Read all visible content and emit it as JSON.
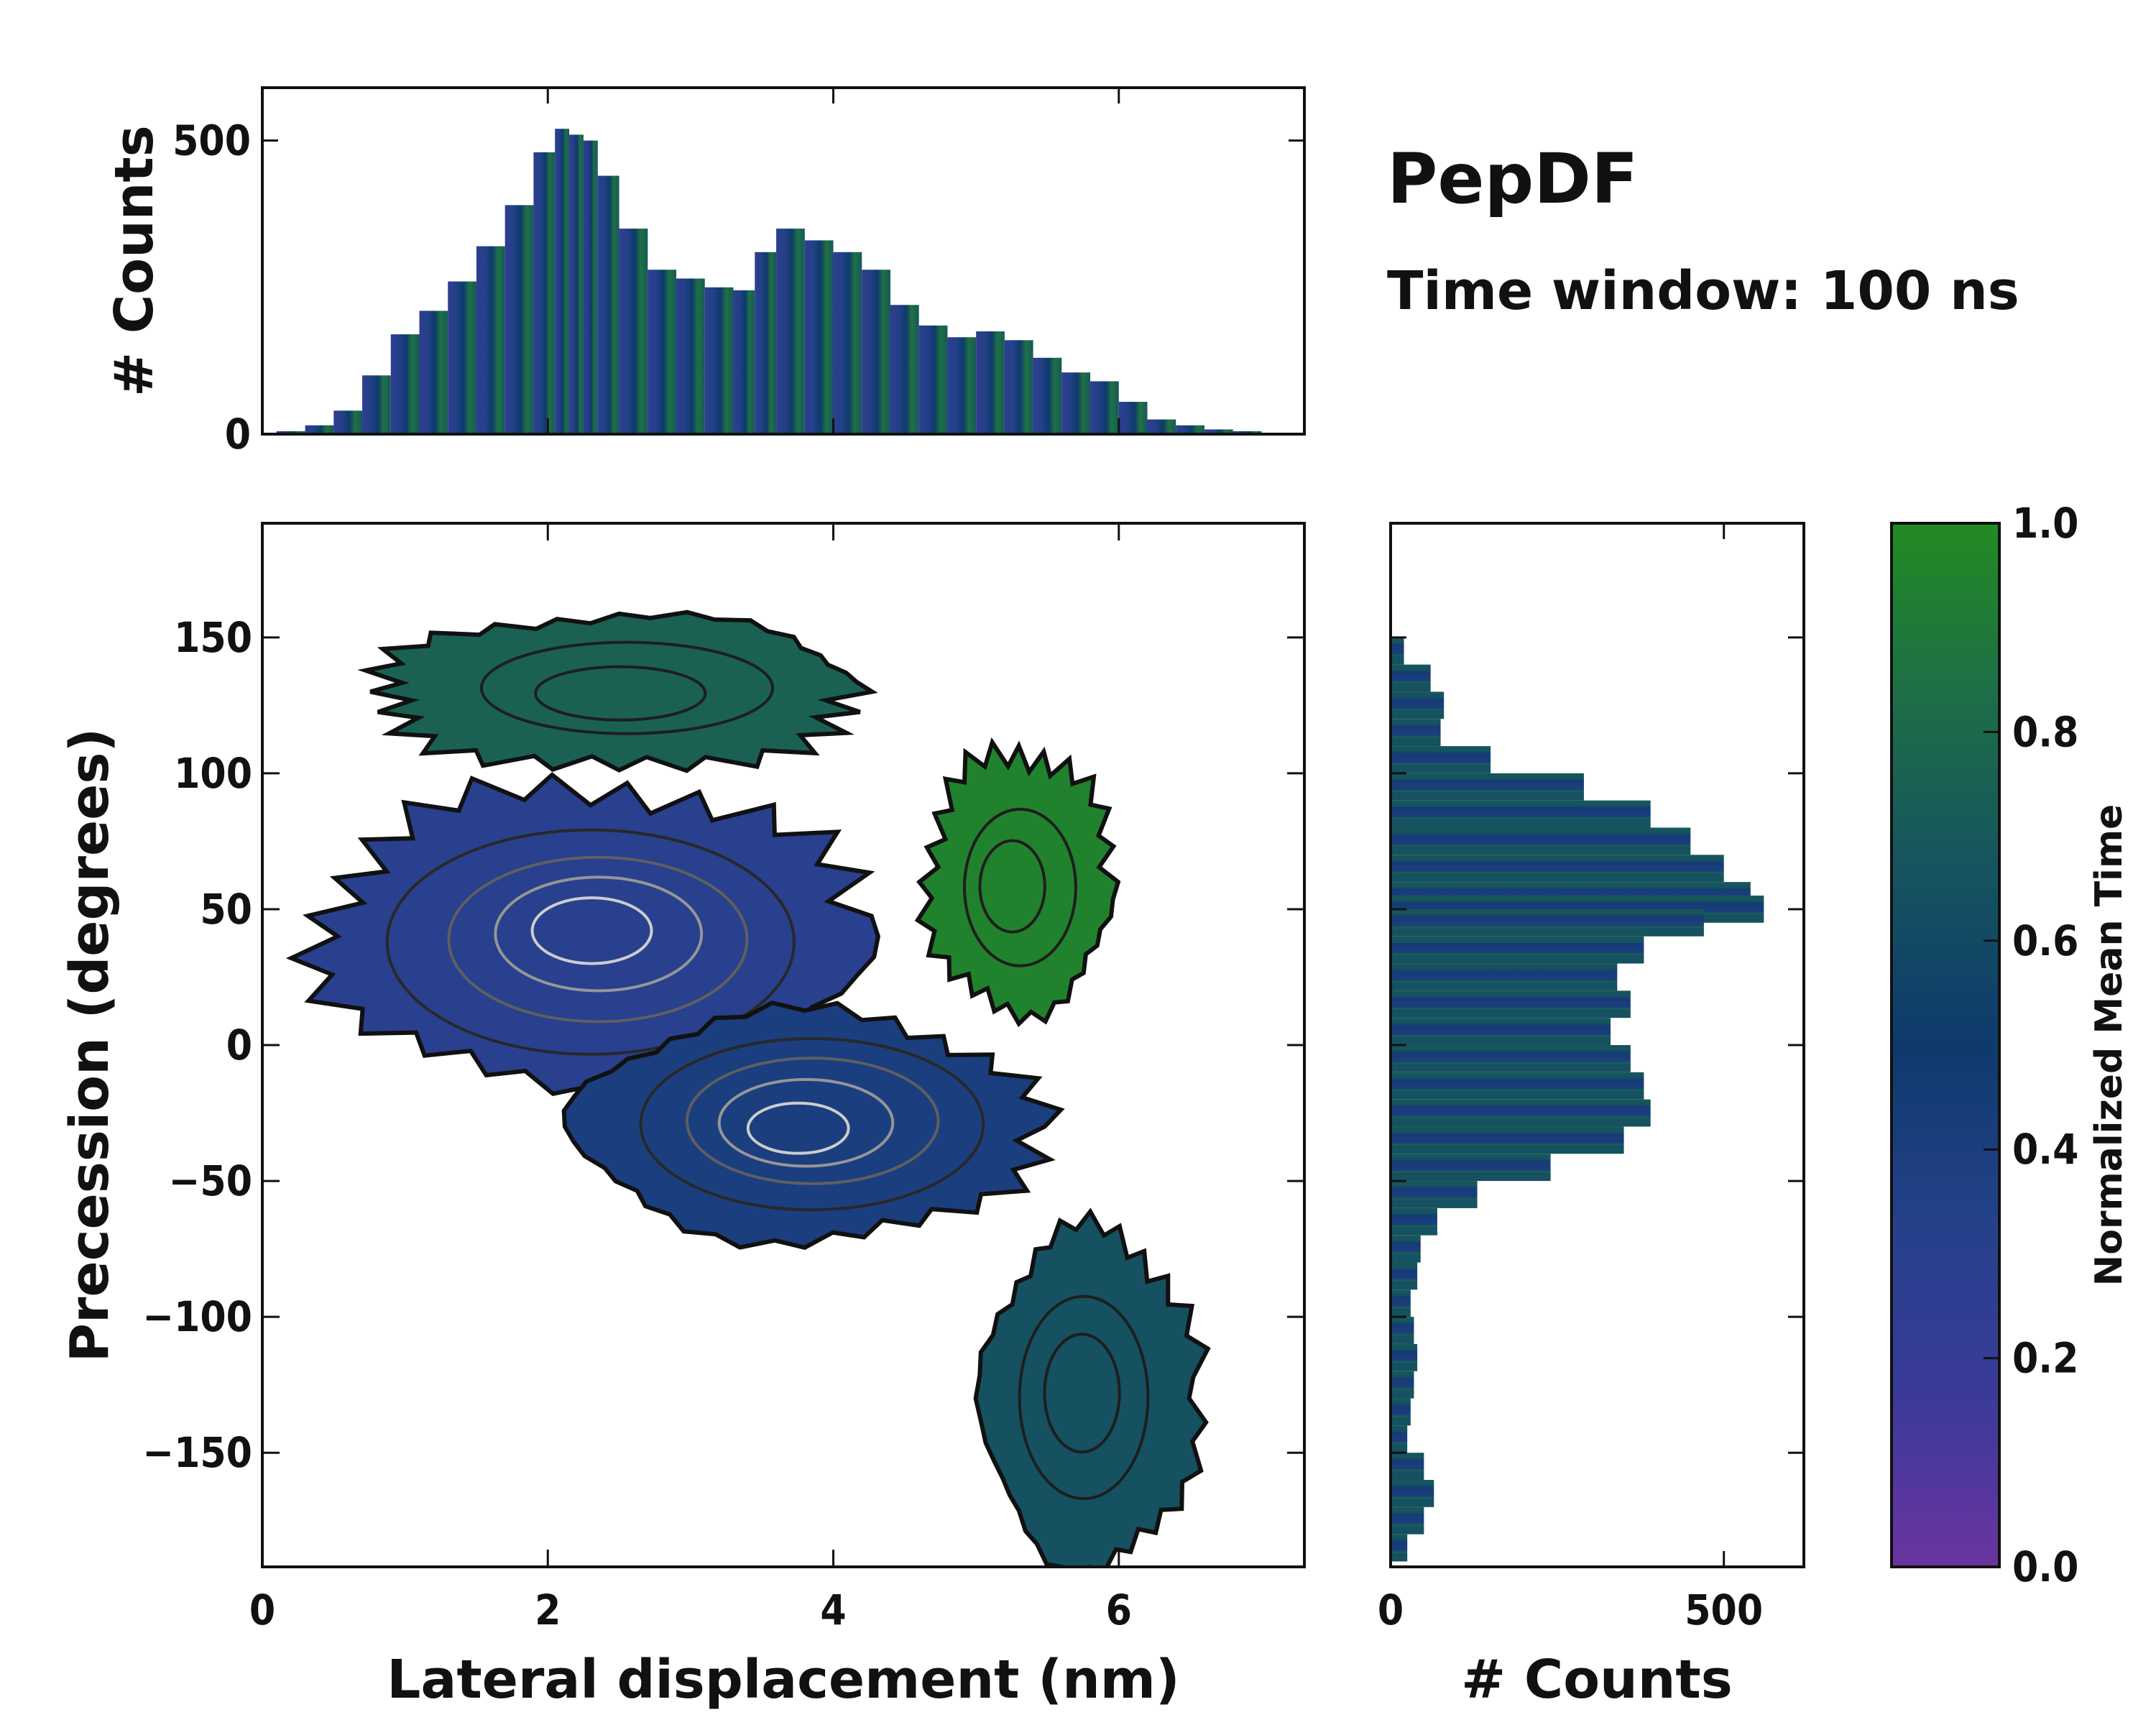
{
  "chart_data": [
    {
      "type": "heatmap",
      "panel": "joint",
      "title": "PepDF",
      "subtitle": "Time window: 100 ns",
      "xlabel": "Lateral displacement (nm)",
      "ylabel": "Precession (degrees)",
      "xlim": [
        0,
        7.3
      ],
      "ylim": [
        -192,
        192
      ],
      "xticks": [
        "0",
        "2",
        "4",
        "6"
      ],
      "xtick_values": [
        0,
        2,
        4,
        6
      ],
      "yticks": [
        "150",
        "100",
        "50",
        "0",
        "−50",
        "−100",
        "−150"
      ],
      "ytick_values": [
        150,
        100,
        50,
        0,
        -50,
        -100,
        -150
      ],
      "color_encodes": "Normalized Mean Time",
      "regions": [
        {
          "name": "upper-left cluster",
          "x_center": 2.3,
          "y_center": 40,
          "color_value": 0.3,
          "peak_density": "high"
        },
        {
          "name": "lower-center cluster",
          "x_center": 3.8,
          "y_center": -30,
          "color_value": 0.4,
          "peak_density": "high"
        },
        {
          "name": "top band",
          "x_center": 2.5,
          "y_center": 130,
          "color_value": 0.75,
          "peak_density": "low"
        },
        {
          "name": "right green cluster",
          "x_center": 5.3,
          "y_center": 60,
          "color_value": 0.95,
          "peak_density": "low"
        },
        {
          "name": "bottom-right tail",
          "x_center": 5.8,
          "y_center": -130,
          "color_value": 0.65,
          "peak_density": "low"
        }
      ]
    },
    {
      "type": "bar",
      "panel": "top-marginal",
      "ylabel": "# Counts",
      "ylim": [
        0,
        590
      ],
      "yticks": [
        "0",
        "500"
      ],
      "ytick_values": [
        0,
        500
      ],
      "x": [
        0.2,
        0.4,
        0.6,
        0.8,
        1.0,
        1.2,
        1.4,
        1.6,
        1.8,
        2.0,
        2.1,
        2.2,
        2.3,
        2.4,
        2.6,
        2.8,
        3.0,
        3.2,
        3.4,
        3.5,
        3.7,
        3.9,
        4.1,
        4.3,
        4.5,
        4.7,
        4.9,
        5.1,
        5.3,
        5.5,
        5.7,
        5.9,
        6.1,
        6.3,
        6.5,
        6.7,
        6.9,
        7.1
      ],
      "values": [
        5,
        15,
        40,
        100,
        170,
        210,
        260,
        320,
        390,
        480,
        520,
        510,
        500,
        440,
        350,
        280,
        265,
        250,
        245,
        310,
        350,
        330,
        310,
        280,
        220,
        185,
        165,
        175,
        160,
        130,
        105,
        90,
        55,
        25,
        15,
        8,
        5,
        2
      ]
    },
    {
      "type": "bar",
      "panel": "right-marginal",
      "orientation": "horizontal",
      "xlabel": "# Counts",
      "xlim": [
        0,
        620
      ],
      "xticks": [
        "0",
        "500"
      ],
      "xtick_values": [
        0,
        500
      ],
      "y": [
        145,
        135,
        125,
        115,
        105,
        95,
        85,
        75,
        65,
        55,
        50,
        45,
        35,
        25,
        15,
        5,
        -5,
        -15,
        -25,
        -35,
        -45,
        -55,
        -65,
        -75,
        -85,
        -95,
        -105,
        -115,
        -125,
        -135,
        -145,
        -155,
        -165,
        -175,
        -185
      ],
      "values": [
        20,
        60,
        80,
        75,
        150,
        290,
        390,
        450,
        500,
        540,
        560,
        470,
        380,
        340,
        360,
        330,
        360,
        380,
        390,
        350,
        240,
        130,
        70,
        45,
        40,
        30,
        35,
        40,
        35,
        30,
        25,
        50,
        65,
        50,
        25
      ]
    }
  ],
  "colorbar": {
    "label": "Normalized Mean Time",
    "min": 0.0,
    "max": 1.0,
    "ticks": [
      "1.0",
      "0.8",
      "0.6",
      "0.4",
      "0.2",
      "0.0"
    ],
    "tick_values": [
      1.0,
      0.8,
      0.6,
      0.4,
      0.2,
      0.0
    ],
    "colors": [
      "#6a34a0",
      "#3a3a98",
      "#24418a",
      "#0e3a6c",
      "#16535f",
      "#1d6e48",
      "#228b22"
    ]
  }
}
